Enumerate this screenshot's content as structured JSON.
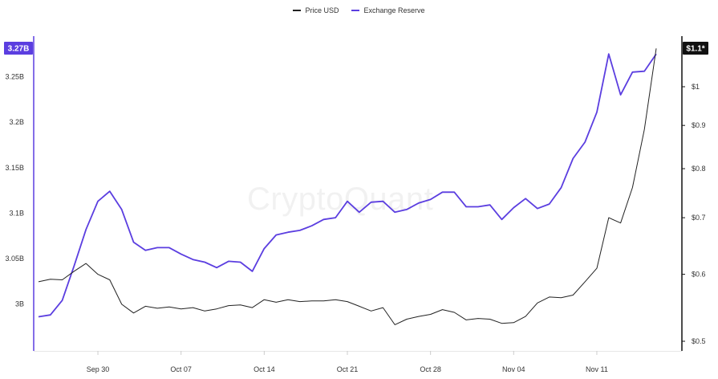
{
  "chart_data": {
    "type": "line",
    "legend": [
      {
        "label": "Price USD",
        "color": "#222222"
      },
      {
        "label": "Exchange Reserve",
        "color": "#5b3ee0"
      }
    ],
    "watermark": "CryptoQuant",
    "x_ticks": [
      "Sep 30",
      "Oct 07",
      "Oct 14",
      "Oct 21",
      "Oct 28",
      "Nov 04",
      "Nov 11"
    ],
    "x": [
      "Sep 25",
      "Sep 26",
      "Sep 27",
      "Sep 28",
      "Sep 29",
      "Sep 30",
      "Oct 01",
      "Oct 02",
      "Oct 03",
      "Oct 04",
      "Oct 05",
      "Oct 06",
      "Oct 07",
      "Oct 08",
      "Oct 09",
      "Oct 10",
      "Oct 11",
      "Oct 12",
      "Oct 13",
      "Oct 14",
      "Oct 15",
      "Oct 16",
      "Oct 17",
      "Oct 18",
      "Oct 19",
      "Oct 20",
      "Oct 21",
      "Oct 22",
      "Oct 23",
      "Oct 24",
      "Oct 25",
      "Oct 26",
      "Oct 27",
      "Oct 28",
      "Oct 29",
      "Oct 30",
      "Oct 31",
      "Nov 01",
      "Nov 02",
      "Nov 03",
      "Nov 04",
      "Nov 05",
      "Nov 06",
      "Nov 07",
      "Nov 08",
      "Nov 09",
      "Nov 10",
      "Nov 11",
      "Nov 12",
      "Nov 13",
      "Nov 14",
      "Nov 15",
      "Nov 16"
    ],
    "left_axis": {
      "ticks": [
        {
          "label": "3B",
          "value": 3.0
        },
        {
          "label": "3.05B",
          "value": 3.05
        },
        {
          "label": "3.1B",
          "value": 3.1
        },
        {
          "label": "3.15B",
          "value": 3.15
        },
        {
          "label": "3.2B",
          "value": 3.2
        },
        {
          "label": "3.25B",
          "value": 3.25
        }
      ],
      "range": [
        2.9785,
        3.2575
      ],
      "current_label": "3.27B",
      "color": "#5b3ee0"
    },
    "right_axis": {
      "ticks": [
        {
          "label": "$0.5",
          "value": 0.5
        },
        {
          "label": "$0.6",
          "value": 0.6
        },
        {
          "label": "$0.7",
          "value": 0.7
        },
        {
          "label": "$0.8",
          "value": 0.8
        },
        {
          "label": "$0.9",
          "value": 0.9
        },
        {
          "label": "$1",
          "value": 1.0
        }
      ],
      "scale": "log",
      "current_label": "$1.1*",
      "color": "#111111"
    },
    "series": [
      {
        "name": "Exchange Reserve",
        "axis": "left",
        "color": "#5b3ee0",
        "values": [
          2.986,
          2.988,
          3.004,
          3.042,
          3.082,
          3.113,
          3.124,
          3.104,
          3.068,
          3.059,
          3.062,
          3.062,
          3.055,
          3.049,
          3.046,
          3.04,
          3.047,
          3.046,
          3.036,
          3.061,
          3.076,
          3.079,
          3.081,
          3.086,
          3.093,
          3.095,
          3.113,
          3.101,
          3.112,
          3.113,
          3.101,
          3.104,
          3.111,
          3.115,
          3.123,
          3.123,
          3.107,
          3.107,
          3.109,
          3.093,
          3.106,
          3.116,
          3.105,
          3.11,
          3.128,
          3.16,
          3.178,
          3.211,
          3.275,
          3.23,
          3.255,
          3.256,
          3.275
        ]
      },
      {
        "name": "Price USD",
        "axis": "right",
        "color": "#222222",
        "values": [
          0.588,
          0.592,
          0.591,
          0.605,
          0.618,
          0.6,
          0.591,
          0.553,
          0.54,
          0.55,
          0.547,
          0.549,
          0.546,
          0.548,
          0.543,
          0.546,
          0.551,
          0.552,
          0.548,
          0.56,
          0.556,
          0.56,
          0.557,
          0.558,
          0.558,
          0.56,
          0.557,
          0.55,
          0.543,
          0.548,
          0.523,
          0.531,
          0.535,
          0.538,
          0.545,
          0.541,
          0.53,
          0.532,
          0.531,
          0.525,
          0.526,
          0.535,
          0.555,
          0.564,
          0.563,
          0.567,
          0.588,
          0.61,
          0.7,
          0.69,
          0.76,
          0.89,
          1.11
        ]
      }
    ]
  }
}
